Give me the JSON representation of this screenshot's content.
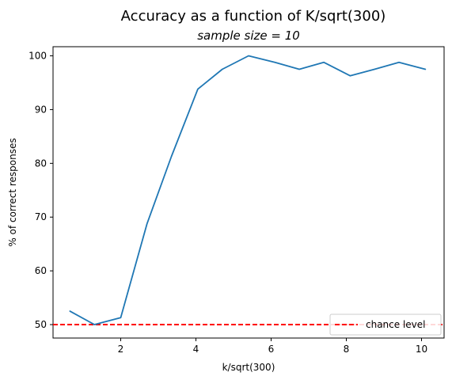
{
  "chart_data": {
    "type": "line",
    "title": "Accuracy as a function of K/sqrt(300)",
    "subtitle": "sample size = 10",
    "xlabel": "k/sqrt(300)",
    "ylabel": "% of correct responses",
    "xlim": [
      0.2,
      10.6
    ],
    "ylim": [
      47.5,
      101.7
    ],
    "xticks": [
      2,
      4,
      6,
      8,
      10
    ],
    "yticks": [
      50,
      60,
      70,
      80,
      90,
      100
    ],
    "grid": false,
    "legend_position": "lower right",
    "series": [
      {
        "color": "#1f77b4",
        "x": [
          0.65,
          1.3,
          2.0,
          2.7,
          3.35,
          4.05,
          4.7,
          5.4,
          6.1,
          6.75,
          7.4,
          8.1,
          8.75,
          9.4,
          10.1
        ],
        "y": [
          52.5,
          50.0,
          51.3,
          68.8,
          81.3,
          93.8,
          97.5,
          100.0,
          98.8,
          97.5,
          98.8,
          96.3,
          97.5,
          98.8,
          97.5
        ]
      }
    ],
    "reference_lines": [
      {
        "name": "chance level",
        "axis": "y",
        "value": 50,
        "color": "#ff0000",
        "style": "dashed"
      }
    ]
  }
}
